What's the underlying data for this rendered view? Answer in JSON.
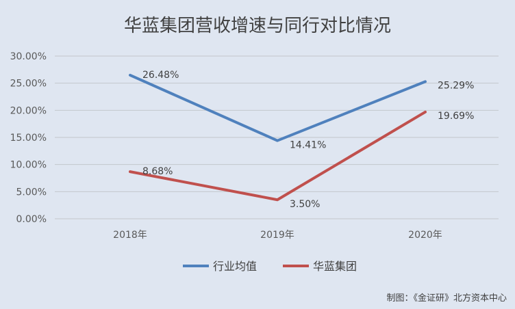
{
  "chart_data": {
    "type": "line",
    "title": "华蓝集团营收增速与同行对比情况",
    "categories": [
      "2018年",
      "2019年",
      "2020年"
    ],
    "series": [
      {
        "name": "行业均值",
        "values": [
          26.48,
          14.41,
          25.29
        ],
        "labels": [
          "26.48%",
          "14.41%",
          "25.29%"
        ],
        "color": "#4f81bd"
      },
      {
        "name": "华蓝集团",
        "values": [
          8.68,
          3.5,
          19.69
        ],
        "labels": [
          "8.68%",
          "3.50%",
          "19.69%"
        ],
        "color": "#c0504d"
      }
    ],
    "y_ticks": [
      "0.00%",
      "5.00%",
      "10.00%",
      "15.00%",
      "20.00%",
      "25.00%",
      "30.00%"
    ],
    "ylim": [
      0,
      30
    ],
    "grid": true,
    "legend_position": "bottom"
  },
  "source_note": "制图：《金证研》北方资本中心"
}
